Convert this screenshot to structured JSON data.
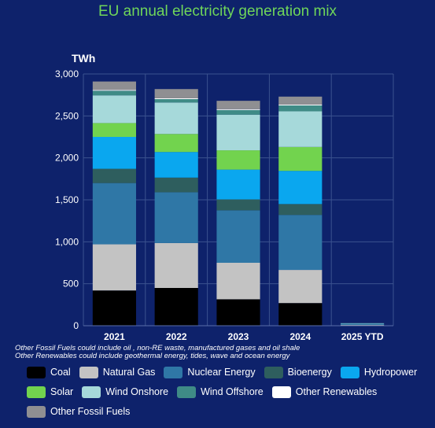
{
  "title": "EU annual electricity generation mix",
  "notes": [
    "Other Fossil Fuels could include oil , non-RE waste, manufactured gases and oil shale",
    "Other Renewables could include geothermal energy, tides, wave and ocean energy"
  ],
  "chart_data": {
    "type": "bar",
    "stacked": true,
    "title": "EU annual electricity generation mix",
    "ylabel": "TWh",
    "xlabel": "",
    "ylim": [
      0,
      3000
    ],
    "yticks": [
      0,
      500,
      1000,
      1500,
      2000,
      2500,
      3000
    ],
    "ytick_labels": [
      "0",
      "500",
      "1,000",
      "1,500",
      "2,000",
      "2,500",
      "3,000"
    ],
    "grid": true,
    "legend_position": "bottom",
    "categories": [
      "2021",
      "2022",
      "2023",
      "2024",
      "2025 YTD"
    ],
    "series": [
      {
        "name": "Coal",
        "color": "#000000",
        "values": [
          420,
          450,
          315,
          270,
          4
        ]
      },
      {
        "name": "Natural Gas",
        "color": "#c3c3c3",
        "values": [
          550,
          535,
          435,
          395,
          6
        ]
      },
      {
        "name": "Nuclear Energy",
        "color": "#2f77a6",
        "values": [
          730,
          605,
          625,
          655,
          8
        ]
      },
      {
        "name": "Bioenergy",
        "color": "#2e5e5e",
        "values": [
          170,
          175,
          130,
          130,
          2
        ]
      },
      {
        "name": "Hydropower",
        "color": "#0aa7ef",
        "values": [
          380,
          305,
          355,
          395,
          3
        ]
      },
      {
        "name": "Solar",
        "color": "#72d34e",
        "values": [
          165,
          215,
          230,
          285,
          1
        ]
      },
      {
        "name": "Wind Onshore",
        "color": "#a6d9da",
        "values": [
          330,
          375,
          425,
          425,
          5
        ]
      },
      {
        "name": "Wind Offshore",
        "color": "#3f8b86",
        "values": [
          55,
          40,
          55,
          70,
          1
        ]
      },
      {
        "name": "Other Renewables",
        "color": "#ffffff",
        "values": [
          10,
          10,
          10,
          10,
          0
        ]
      },
      {
        "name": "Other Fossil Fuels",
        "color": "#8f8f92",
        "values": [
          100,
          110,
          100,
          95,
          1
        ]
      }
    ]
  }
}
